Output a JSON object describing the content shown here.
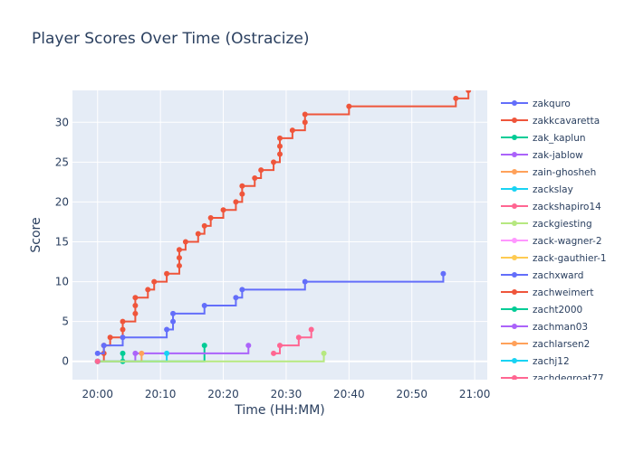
{
  "chart_data": {
    "type": "line",
    "title": "Player Scores Over Time (Ostracize)",
    "xlabel": "Time (HH:MM)",
    "ylabel": "Score",
    "xlim": [
      "19:56",
      "21:02"
    ],
    "ylim": [
      -2.3,
      34
    ],
    "x_ticks": [
      "20:00",
      "20:10",
      "20:20",
      "20:30",
      "20:40",
      "20:50",
      "21:00"
    ],
    "y_ticks": [
      0,
      5,
      10,
      15,
      20,
      25,
      30
    ],
    "line_shape": "step",
    "grid": true,
    "legend_position": "right",
    "series": [
      {
        "name": "zakquro",
        "color": "#636efa",
        "x": [
          "20:00",
          "20:00"
        ],
        "y": [
          0,
          0
        ]
      },
      {
        "name": "zakkcavaretta",
        "color": "#EF553B",
        "x": [
          "20:00",
          "20:01",
          "20:01",
          "20:02",
          "20:04",
          "20:04",
          "20:06",
          "20:06",
          "20:06",
          "20:08",
          "20:09",
          "20:11",
          "20:13",
          "20:13",
          "20:13",
          "20:14",
          "20:16",
          "20:17",
          "20:18",
          "20:20",
          "20:22",
          "20:23",
          "20:23",
          "20:25",
          "20:26",
          "20:28",
          "20:29",
          "20:29",
          "20:29",
          "20:31",
          "20:33",
          "20:33",
          "20:40",
          "20:57",
          "20:59"
        ],
        "y": [
          0,
          1,
          2,
          3,
          4,
          5,
          6,
          7,
          8,
          9,
          10,
          11,
          12,
          13,
          14,
          15,
          16,
          17,
          18,
          19,
          20,
          21,
          22,
          23,
          24,
          25,
          26,
          27,
          28,
          29,
          30,
          31,
          32,
          33,
          34
        ]
      },
      {
        "name": "zak_kaplun",
        "color": "#00cc96",
        "x": [
          "20:00",
          "20:04",
          "20:04",
          "20:17"
        ],
        "y": [
          0,
          1,
          0,
          2
        ]
      },
      {
        "name": "zak-jablow",
        "color": "#ab63fa",
        "x": [
          "20:00",
          "20:06",
          "20:24"
        ],
        "y": [
          0,
          1,
          2
        ]
      },
      {
        "name": "zain-ghosheh",
        "color": "#FFA15A",
        "x": [
          "20:00",
          "20:07"
        ],
        "y": [
          0,
          1
        ]
      },
      {
        "name": "zackslay",
        "color": "#19d3f3",
        "x": [
          "20:00",
          "20:11"
        ],
        "y": [
          0,
          1
        ]
      },
      {
        "name": "zackshapiro14",
        "color": "#FF6692",
        "x": [
          "20:28",
          "20:29",
          "20:32",
          "20:34"
        ],
        "y": [
          1,
          2,
          3,
          4
        ]
      },
      {
        "name": "zackgiesting",
        "color": "#B6E880",
        "x": [
          "20:00",
          "20:36"
        ],
        "y": [
          0,
          1
        ]
      },
      {
        "name": "zack-wagner-2",
        "color": "#FF97FF",
        "x": [
          "20:00"
        ],
        "y": [
          0
        ]
      },
      {
        "name": "zack-gauthier-1",
        "color": "#FECB52",
        "x": [
          "20:00"
        ],
        "y": [
          0
        ]
      },
      {
        "name": "zachxward",
        "color": "#636efa",
        "x": [
          "20:00",
          "20:01",
          "20:04",
          "20:11",
          "20:12",
          "20:12",
          "20:17",
          "20:22",
          "20:23",
          "20:33",
          "20:55"
        ],
        "y": [
          1,
          2,
          3,
          4,
          5,
          6,
          7,
          8,
          9,
          10,
          11
        ]
      },
      {
        "name": "zachweimert",
        "color": "#EF553B",
        "x": [
          "20:00"
        ],
        "y": [
          0
        ]
      },
      {
        "name": "zacht2000",
        "color": "#00cc96",
        "x": [
          "20:00"
        ],
        "y": [
          0
        ]
      },
      {
        "name": "zachman03",
        "color": "#ab63fa",
        "x": [
          "20:00"
        ],
        "y": [
          0
        ]
      },
      {
        "name": "zachlarsen2",
        "color": "#FFA15A",
        "x": [
          "20:00"
        ],
        "y": [
          0
        ]
      },
      {
        "name": "zachj12",
        "color": "#19d3f3",
        "x": [
          "20:00"
        ],
        "y": [
          0
        ]
      },
      {
        "name": "zachdegroat77",
        "color": "#FF6692",
        "x": [
          "20:00"
        ],
        "y": [
          0
        ]
      }
    ]
  }
}
